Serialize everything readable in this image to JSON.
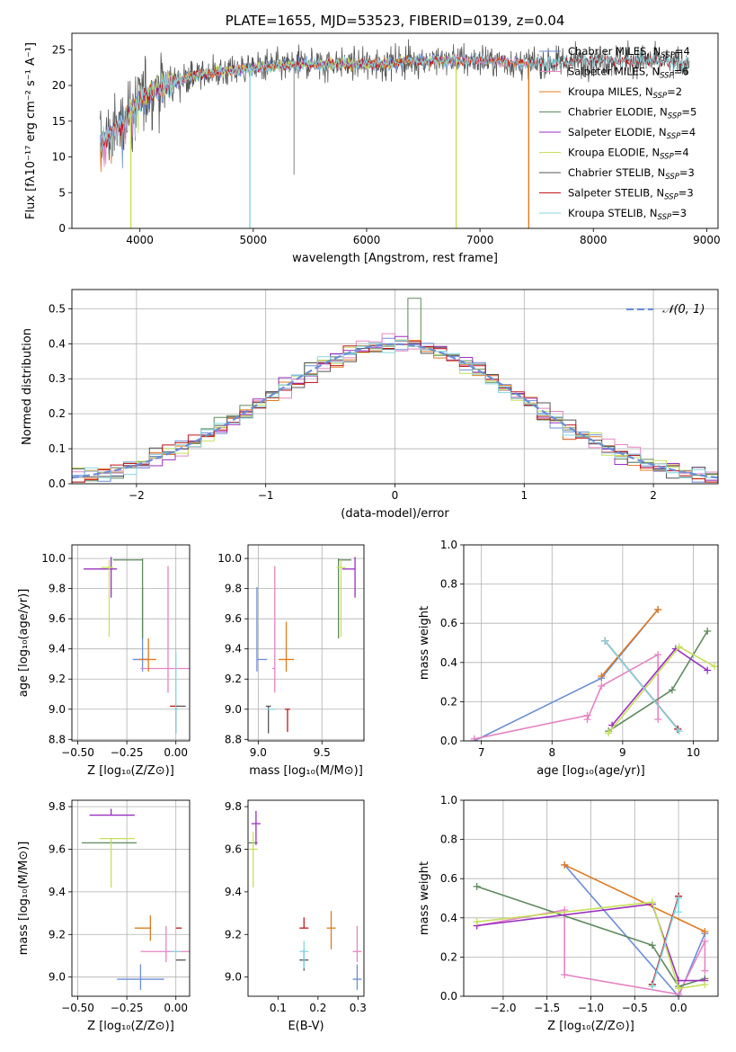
{
  "colors": {
    "Chabrier MILES": "#6b8ed6",
    "Salpeter MILES": "#e684c3",
    "Kroupa MILES": "#e07a1f",
    "Chabrier ELODIE": "#5e8a5e",
    "Salpeter ELODIE": "#9a2fbf",
    "Kroupa ELODIE": "#c6e05a",
    "Chabrier STELIB": "#555555",
    "Salpeter STELIB": "#c4161c",
    "Kroupa STELIB": "#86d6df",
    "normal": "#6b8ed6"
  },
  "chart_data": [
    {
      "id": "spectrum",
      "type": "line",
      "title": "PLATE=1655, MJD=53523, FIBERID=0139, z=0.04",
      "xlabel": "wavelength [Angstrom, rest frame]",
      "ylabel": "Flux [fλ10⁻¹⁷ erg cm⁻² s⁻¹ A⁻¹]",
      "xlim": [
        3400,
        9100
      ],
      "ylim": [
        0,
        27.3
      ],
      "xticks": [
        4000,
        5000,
        6000,
        7000,
        8000,
        9000
      ],
      "yticks": [
        0,
        5,
        10,
        15,
        20,
        25
      ],
      "grid": false,
      "legend_position": "top-right",
      "series": [
        {
          "name": "Chabrier MILES",
          "nssp": "4",
          "x_range": [
            3650,
            7420
          ]
        },
        {
          "name": "Salpeter MILES",
          "nssp": "6",
          "x_range": [
            3650,
            7420
          ]
        },
        {
          "name": "Kroupa MILES",
          "nssp": "2",
          "x_range": [
            3650,
            7420
          ]
        },
        {
          "name": "Chabrier ELODIE",
          "nssp": "5",
          "x_range": [
            3900,
            6800
          ]
        },
        {
          "name": "Salpeter ELODIE",
          "nssp": "4",
          "x_range": [
            3900,
            6800
          ]
        },
        {
          "name": "Kroupa ELODIE",
          "nssp": "4",
          "x_range": [
            3900,
            6800
          ]
        },
        {
          "name": "Chabrier STELIB",
          "nssp": "3",
          "x_range": [
            3650,
            8850
          ]
        },
        {
          "name": "Salpeter STELIB",
          "nssp": "3",
          "x_range": [
            3650,
            8850
          ]
        },
        {
          "name": "Kroupa STELIB",
          "nssp": "3",
          "x_range": [
            3650,
            8850
          ]
        }
      ],
      "continuum_points": [
        [
          3650,
          12
        ],
        [
          3800,
          14
        ],
        [
          4000,
          18
        ],
        [
          4200,
          20
        ],
        [
          4500,
          21.5
        ],
        [
          5000,
          22.5
        ],
        [
          5500,
          23
        ],
        [
          6000,
          23
        ],
        [
          6500,
          23.5
        ],
        [
          7000,
          23.5
        ],
        [
          7500,
          23
        ],
        [
          8000,
          23.5
        ],
        [
          8500,
          23.5
        ],
        [
          8850,
          23
        ]
      ],
      "spikes_to_zero": [
        3920,
        4970,
        6790,
        7430
      ],
      "spike_to_value": [
        [
          5360,
          7.5
        ]
      ],
      "sub_label": "SSP"
    },
    {
      "id": "residuals",
      "type": "histogram",
      "xlabel": "(data-model)/error",
      "ylabel": "Normed distribution",
      "xlim": [
        -2.5,
        2.5
      ],
      "ylim": [
        0,
        0.555
      ],
      "xticks": [
        -2,
        -1,
        0,
        1,
        2
      ],
      "yticks": [
        0.0,
        0.1,
        0.2,
        0.3,
        0.4,
        0.5
      ],
      "grid": true,
      "legend_position": "top-right",
      "reference_curve_label": "𝒩(0, 1)",
      "bin_width": 0.1,
      "peak_value": 0.53
    },
    {
      "id": "age-vs-Z",
      "type": "errorbar",
      "xlabel": "Z [log₁₀(Z/Z⊙)]",
      "ylabel": "age  [log₁₀(age/yr)]",
      "xlim": [
        -0.53,
        0.07
      ],
      "ylim": [
        8.79,
        10.09
      ],
      "xticks": [
        -0.5,
        -0.25,
        0.0
      ],
      "xticklabels": [
        "−0.50",
        "−0.25",
        "0.00"
      ],
      "yticks": [
        8.8,
        9.0,
        9.2,
        9.4,
        9.6,
        9.8,
        10.0
      ],
      "grid": true,
      "points": [
        {
          "series": "Chabrier MILES",
          "x": -0.17,
          "xerr": [
            0.05,
            0.03
          ],
          "y": 9.33,
          "yerr": [
            0.08,
            0.48
          ]
        },
        {
          "series": "Salpeter MILES",
          "x": -0.04,
          "xerr": [
            0.14,
            0.11
          ],
          "y": 9.27,
          "yerr": [
            0.16,
            0.68
          ]
        },
        {
          "series": "Kroupa MILES",
          "x": -0.14,
          "xerr": [
            0.05,
            0.04
          ],
          "y": 9.33,
          "yerr": [
            0.08,
            0.14
          ]
        },
        {
          "series": "Chabrier ELODIE",
          "x": -0.17,
          "xerr": [
            0.15,
            0.0
          ],
          "y": 9.99,
          "yerr": [
            0.52,
            0.01
          ]
        },
        {
          "series": "Salpeter ELODIE",
          "x": -0.33,
          "xerr": [
            0.14,
            0.03
          ],
          "y": 9.93,
          "yerr": [
            0.19,
            0.08
          ]
        },
        {
          "series": "Kroupa ELODIE",
          "x": -0.34,
          "xerr": [
            0.04,
            0.02
          ],
          "y": 9.94,
          "yerr": [
            0.46,
            0.05
          ]
        },
        {
          "series": "Chabrier STELIB",
          "x": 0.0,
          "xerr": [
            0.01,
            0.05
          ],
          "y": 9.02,
          "yerr": [
            0.18,
            0.0
          ]
        },
        {
          "series": "Salpeter STELIB",
          "x": -0.02,
          "xerr": [
            0.01,
            0.03
          ],
          "y": 9.02,
          "yerr": [
            0.0,
            0.0
          ]
        },
        {
          "series": "Kroupa STELIB",
          "x": 0.0,
          "xerr": [
            0.01,
            0.01
          ],
          "y": 9.0,
          "yerr": [
            0.16,
            0.38
          ]
        }
      ]
    },
    {
      "id": "age-vs-mass",
      "type": "errorbar",
      "xlabel": "mass [log₁₀(M/M⊙)]",
      "ylabel": "",
      "xlim": [
        8.92,
        9.83
      ],
      "ylim": [
        8.79,
        10.09
      ],
      "xticks": [
        9.0,
        9.5
      ],
      "xticklabels": [
        "9.0",
        "9.5"
      ],
      "yticks": [
        8.8,
        9.0,
        9.2,
        9.4,
        9.6,
        9.8,
        10.0
      ],
      "grid": true,
      "points": [
        {
          "series": "Chabrier MILES",
          "x": 8.99,
          "xerr": [
            0.0,
            0.08
          ],
          "y": 9.33,
          "yerr": [
            0.08,
            0.48
          ]
        },
        {
          "series": "Salpeter MILES",
          "x": 9.13,
          "xerr": [
            0.02,
            0.0
          ],
          "y": 9.27,
          "yerr": [
            0.16,
            0.68
          ]
        },
        {
          "series": "Kroupa MILES",
          "x": 9.22,
          "xerr": [
            0.06,
            0.06
          ],
          "y": 9.33,
          "yerr": [
            0.08,
            0.25
          ]
        },
        {
          "series": "Chabrier ELODIE",
          "x": 9.63,
          "xerr": [
            0.0,
            0.1
          ],
          "y": 9.99,
          "yerr": [
            0.52,
            0.01
          ]
        },
        {
          "series": "Salpeter ELODIE",
          "x": 9.76,
          "xerr": [
            0.1,
            0.0
          ],
          "y": 9.93,
          "yerr": [
            0.19,
            0.08
          ]
        },
        {
          "series": "Kroupa ELODIE",
          "x": 9.65,
          "xerr": [
            0.0,
            0.0
          ],
          "y": 9.94,
          "yerr": [
            0.46,
            0.05
          ]
        },
        {
          "series": "Chabrier STELIB",
          "x": 9.08,
          "xerr": [
            0.02,
            0.02
          ],
          "y": 9.02,
          "yerr": [
            0.18,
            0.0
          ]
        },
        {
          "series": "Salpeter STELIB",
          "x": 9.23,
          "xerr": [
            0.02,
            0.02
          ],
          "y": 9.0,
          "yerr": [
            0.15,
            0.0
          ]
        },
        {
          "series": "Kroupa STELIB",
          "x": 9.1,
          "xerr": [
            0.0,
            0.0
          ],
          "y": 9.0,
          "yerr": [
            0.0,
            0.0
          ]
        }
      ]
    },
    {
      "id": "weight-vs-age",
      "type": "line",
      "xlabel": "age  [log₁₀(age/yr)]",
      "ylabel": "mass weight",
      "xlim": [
        6.75,
        10.35
      ],
      "ylim": [
        0,
        1.0
      ],
      "xticks": [
        7,
        8,
        9,
        10
      ],
      "yticks": [
        0.0,
        0.2,
        0.4,
        0.6,
        0.8,
        1.0
      ],
      "grid": true,
      "series": [
        {
          "name": "Chabrier MILES",
          "x": [
            6.9,
            8.7,
            9.5
          ],
          "y": [
            0.0,
            0.32,
            0.67
          ]
        },
        {
          "name": "Salpeter MILES",
          "x": [
            6.9,
            8.5,
            8.5,
            8.7,
            9.5,
            9.5
          ],
          "y": [
            0.01,
            0.13,
            0.11,
            0.28,
            0.44,
            0.11
          ]
        },
        {
          "name": "Kroupa MILES",
          "x": [
            8.7,
            9.5
          ],
          "y": [
            0.33,
            0.67
          ]
        },
        {
          "name": "Chabrier ELODIE",
          "x": [
            8.8,
            9.7,
            10.2
          ],
          "y": [
            0.05,
            0.26,
            0.56
          ]
        },
        {
          "name": "Salpeter ELODIE",
          "x": [
            8.85,
            9.75,
            10.2
          ],
          "y": [
            0.08,
            0.47,
            0.36
          ]
        },
        {
          "name": "Kroupa ELODIE",
          "x": [
            8.8,
            9.8,
            10.3
          ],
          "y": [
            0.04,
            0.48,
            0.38
          ]
        },
        {
          "name": "Chabrier STELIB",
          "x": [
            8.75,
            9.78
          ],
          "y": [
            0.51,
            0.06
          ]
        },
        {
          "name": "Salpeter STELIB",
          "x": [
            8.75,
            9.78
          ],
          "y": [
            0.51,
            0.06
          ]
        },
        {
          "name": "Kroupa STELIB",
          "x": [
            8.75,
            9.8
          ],
          "y": [
            0.51,
            0.05
          ]
        }
      ]
    },
    {
      "id": "mass-vs-Z",
      "type": "errorbar",
      "xlabel": "Z [log₁₀(Z/Z⊙)]",
      "ylabel": "mass [log₁₀(M/M⊙)]",
      "xlim": [
        -0.53,
        0.07
      ],
      "ylim": [
        8.91,
        9.83
      ],
      "xticks": [
        -0.5,
        -0.25,
        0.0
      ],
      "xticklabels": [
        "−0.50",
        "−0.25",
        "0.00"
      ],
      "yticks": [
        9.0,
        9.2,
        9.4,
        9.6,
        9.8
      ],
      "grid": true,
      "points": [
        {
          "series": "Chabrier MILES",
          "x": -0.18,
          "xerr": [
            0.12,
            0.12
          ],
          "y": 8.99,
          "yerr": [
            0.05,
            0.07
          ]
        },
        {
          "series": "Salpeter MILES",
          "x": -0.05,
          "xerr": [
            0.13,
            0.12
          ],
          "y": 9.12,
          "yerr": [
            0.05,
            0.12
          ]
        },
        {
          "series": "Kroupa MILES",
          "x": -0.13,
          "xerr": [
            0.08,
            0.0
          ],
          "y": 9.23,
          "yerr": [
            0.06,
            0.06
          ]
        },
        {
          "series": "Chabrier ELODIE",
          "x": -0.34,
          "xerr": [
            0.14,
            0.14
          ],
          "y": 9.63,
          "yerr": [
            0.0,
            0.0
          ]
        },
        {
          "series": "Salpeter ELODIE",
          "x": -0.33,
          "xerr": [
            0.11,
            0.12
          ],
          "y": 9.76,
          "yerr": [
            0.0,
            0.03
          ]
        },
        {
          "series": "Kroupa ELODIE",
          "x": -0.33,
          "xerr": [
            0.06,
            0.12
          ],
          "y": 9.65,
          "yerr": [
            0.23,
            0.0
          ]
        },
        {
          "series": "Chabrier STELIB",
          "x": 0.0,
          "xerr": [
            0.0,
            0.05
          ],
          "y": 9.08,
          "yerr": [
            0.0,
            0.0
          ]
        },
        {
          "series": "Salpeter STELIB",
          "x": 0.0,
          "xerr": [
            0.0,
            0.03
          ],
          "y": 9.23,
          "yerr": [
            0.0,
            0.0
          ]
        },
        {
          "series": "Kroupa STELIB",
          "x": 0.0,
          "xerr": [
            0.0,
            0.0
          ],
          "y": 9.12,
          "yerr": [
            0.0,
            0.0
          ]
        }
      ]
    },
    {
      "id": "mass-vs-ebv",
      "type": "errorbar",
      "xlabel": "E(B-V)",
      "ylabel": "",
      "xlim": [
        0.025,
        0.315
      ],
      "ylim": [
        8.91,
        9.83
      ],
      "xticks": [
        0.1,
        0.2,
        0.3
      ],
      "xticklabels": [
        "0.1",
        "0.2",
        "0.3"
      ],
      "yticks": [
        9.0,
        9.2,
        9.4,
        9.6,
        9.8
      ],
      "grid": false,
      "points": [
        {
          "series": "Chabrier MILES",
          "x": 0.298,
          "y": 8.99,
          "yerr": [
            0.05,
            0.07
          ]
        },
        {
          "series": "Salpeter MILES",
          "x": 0.298,
          "y": 9.12,
          "yerr": [
            0.05,
            0.12
          ]
        },
        {
          "series": "Kroupa MILES",
          "x": 0.233,
          "y": 9.23,
          "yerr": [
            0.1,
            0.08
          ]
        },
        {
          "series": "Chabrier ELODIE",
          "x": 0.038,
          "y": 9.63,
          "yerr": [
            0.0,
            0.0
          ]
        },
        {
          "series": "Salpeter ELODIE",
          "x": 0.045,
          "y": 9.72,
          "yerr": [
            0.1,
            0.06
          ]
        },
        {
          "series": "Kroupa ELODIE",
          "x": 0.038,
          "y": 9.6,
          "yerr": [
            0.18,
            0.08
          ]
        },
        {
          "series": "Chabrier STELIB",
          "x": 0.165,
          "y": 9.08,
          "yerr": [
            0.05,
            0.05
          ]
        },
        {
          "series": "Salpeter STELIB",
          "x": 0.165,
          "y": 9.23,
          "yerr": [
            0.0,
            0.05
          ]
        },
        {
          "series": "Kroupa STELIB",
          "x": 0.165,
          "y": 9.12,
          "yerr": [
            0.08,
            0.05
          ]
        }
      ]
    },
    {
      "id": "weight-vs-Z",
      "type": "line",
      "xlabel": "Z [log₁₀(Z/Z⊙)]",
      "ylabel": "mass weight",
      "xlim": [
        -2.45,
        0.45
      ],
      "ylim": [
        0,
        1.0
      ],
      "xticks": [
        -2.0,
        -1.5,
        -1.0,
        -0.5,
        0.0
      ],
      "xticklabels": [
        "−2.0",
        "−1.5",
        "−1.0",
        "−0.5",
        "0.0"
      ],
      "yticks": [
        0.0,
        0.2,
        0.4,
        0.6,
        0.8,
        1.0
      ],
      "grid": true,
      "series": [
        {
          "name": "Chabrier MILES",
          "x": [
            -1.3,
            0.0,
            0.3
          ],
          "y": [
            0.67,
            0.0,
            0.32
          ]
        },
        {
          "name": "Salpeter MILES",
          "x": [
            -2.3,
            -1.3,
            -1.3,
            0.0,
            0.3,
            0.3
          ],
          "y": [
            0.36,
            0.44,
            0.11,
            0.01,
            0.28,
            0.13
          ]
        },
        {
          "name": "Kroupa MILES",
          "x": [
            -1.3,
            0.3
          ],
          "y": [
            0.67,
            0.33
          ]
        },
        {
          "name": "Chabrier ELODIE",
          "x": [
            -2.3,
            -0.3,
            0.0,
            0.3
          ],
          "y": [
            0.56,
            0.26,
            0.05,
            0.09
          ]
        },
        {
          "name": "Salpeter ELODIE",
          "x": [
            -2.3,
            -0.3,
            0.0,
            0.3
          ],
          "y": [
            0.36,
            0.47,
            0.08,
            0.08
          ]
        },
        {
          "name": "Kroupa ELODIE",
          "x": [
            -2.3,
            -0.3,
            0.0,
            0.3
          ],
          "y": [
            0.38,
            0.48,
            0.04,
            0.06
          ]
        },
        {
          "name": "Chabrier STELIB",
          "x": [
            -0.3,
            0.0
          ],
          "y": [
            0.06,
            0.51
          ]
        },
        {
          "name": "Salpeter STELIB",
          "x": [
            -0.3,
            0.0
          ],
          "y": [
            0.06,
            0.51
          ]
        },
        {
          "name": "Kroupa STELIB",
          "x": [
            -0.3,
            0.0,
            0.0
          ],
          "y": [
            0.05,
            0.5,
            0.43
          ]
        }
      ]
    }
  ]
}
